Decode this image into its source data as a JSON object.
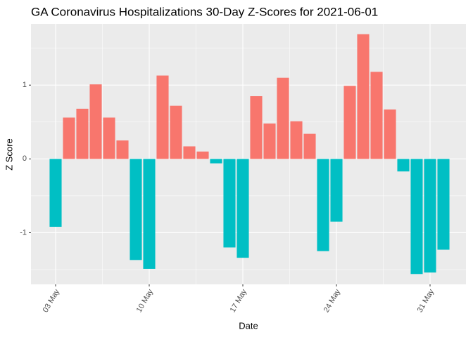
{
  "chart_data": {
    "type": "bar",
    "title": "GA Coronavirus Hospitalizations 30-Day Z-Scores for 2021-06-01",
    "x_label": "Date",
    "y_label": "Z Score",
    "categories": [
      "03 May",
      null,
      null,
      null,
      null,
      null,
      null,
      "10 May",
      null,
      null,
      null,
      null,
      null,
      null,
      "17 May",
      null,
      null,
      null,
      null,
      null,
      null,
      "24 May",
      null,
      null,
      null,
      null,
      null,
      null,
      "31 May",
      null
    ],
    "values": [
      -0.92,
      0.56,
      0.68,
      1.01,
      0.56,
      0.25,
      -1.37,
      -1.49,
      1.13,
      0.72,
      0.17,
      0.1,
      -0.06,
      -1.2,
      -1.34,
      0.85,
      0.48,
      1.1,
      0.51,
      0.34,
      -1.25,
      -0.85,
      0.99,
      1.69,
      1.18,
      0.67,
      -0.17,
      -1.56,
      -1.54,
      -1.23
    ],
    "colors": {
      "positive": "#F8766D",
      "negative": "#00BFC4"
    },
    "ylim": [
      -1.7,
      1.83
    ],
    "yticks": [
      -1,
      0,
      1
    ],
    "grid": true
  }
}
